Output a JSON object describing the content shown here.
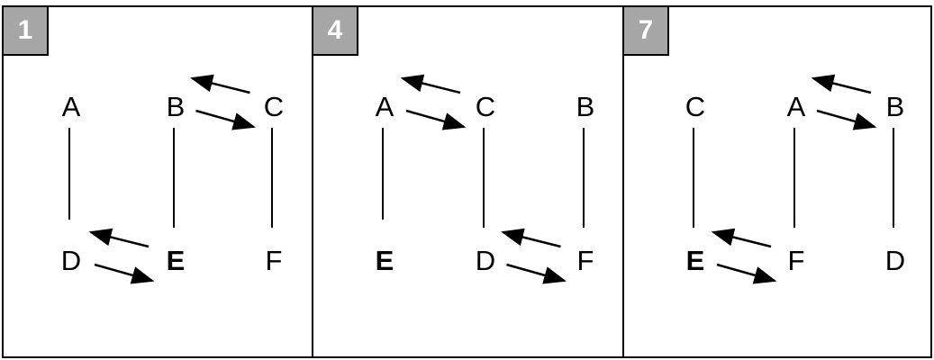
{
  "panels": [
    {
      "number": "1",
      "nodes": [
        {
          "label": "A",
          "bold": false
        },
        {
          "label": "B",
          "bold": false
        },
        {
          "label": "C",
          "bold": false
        },
        {
          "label": "D",
          "bold": false
        },
        {
          "label": "E",
          "bold": true
        },
        {
          "label": "F",
          "bold": false
        }
      ],
      "links": [
        [
          "A",
          "D"
        ],
        [
          "B",
          "E"
        ],
        [
          "C",
          "F"
        ]
      ],
      "swaps": [
        [
          "B",
          "C"
        ],
        [
          "D",
          "E"
        ]
      ]
    },
    {
      "number": "4",
      "nodes": [
        {
          "label": "A",
          "bold": false
        },
        {
          "label": "C",
          "bold": false
        },
        {
          "label": "B",
          "bold": false
        },
        {
          "label": "E",
          "bold": true
        },
        {
          "label": "D",
          "bold": false
        },
        {
          "label": "F",
          "bold": false
        }
      ],
      "links": [
        [
          "A",
          "E"
        ],
        [
          "C",
          "D"
        ],
        [
          "B",
          "F"
        ]
      ],
      "swaps": [
        [
          "A",
          "C"
        ],
        [
          "D",
          "F"
        ]
      ]
    },
    {
      "number": "7",
      "nodes": [
        {
          "label": "C",
          "bold": false
        },
        {
          "label": "A",
          "bold": false
        },
        {
          "label": "B",
          "bold": false
        },
        {
          "label": "E",
          "bold": true
        },
        {
          "label": "F",
          "bold": false
        },
        {
          "label": "D",
          "bold": false
        }
      ],
      "links": [
        [
          "C",
          "E"
        ],
        [
          "A",
          "F"
        ],
        [
          "B",
          "D"
        ]
      ],
      "swaps": [
        [
          "A",
          "B"
        ],
        [
          "E",
          "F"
        ]
      ]
    }
  ],
  "colors": {
    "border": "#000000",
    "badge_fill": "#a6a6a6",
    "badge_text": "#ffffff"
  }
}
